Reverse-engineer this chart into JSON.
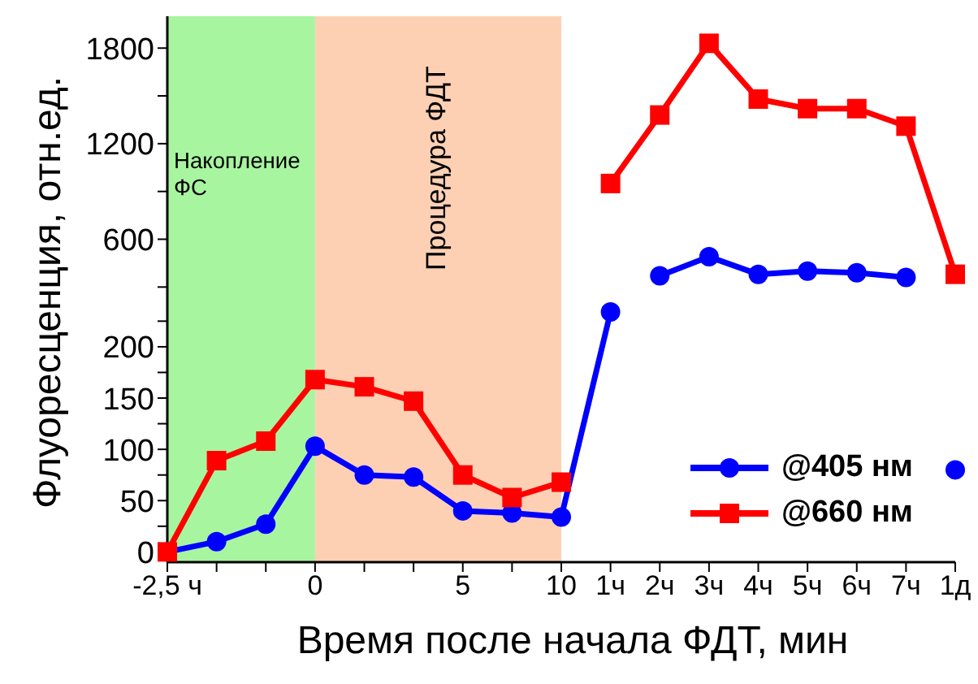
{
  "chart_data": [
    {
      "type": "line",
      "ylabel": "Флуоресценция, отн.ед.",
      "categories": [
        "-2,5 ч",
        null,
        null,
        "0",
        null,
        null,
        "5",
        null,
        "10",
        "1ч",
        "2ч",
        "3ч",
        "4ч",
        "5ч",
        "6ч",
        "7ч",
        "1д"
      ],
      "series": [
        {
          "color": "#0000ff",
          "marker": "circle",
          "values": [
            null,
            null,
            null,
            null,
            null,
            null,
            null,
            null,
            null,
            null,
            370,
            490,
            380,
            400,
            390,
            360,
            null
          ]
        },
        {
          "color": "#ff0000",
          "marker": "square",
          "values": [
            null,
            null,
            null,
            null,
            null,
            null,
            null,
            null,
            null,
            950,
            1380,
            1830,
            1480,
            1420,
            1420,
            1310,
            380
          ]
        }
      ],
      "ylim": [
        266,
        2000
      ],
      "yticks": [
        {
          "value": 300,
          "label": null
        },
        600,
        {
          "value": 900,
          "label": null
        },
        1200,
        {
          "value": 1500,
          "label": null
        },
        1800
      ],
      "bands": [
        {
          "axis": "x",
          "from": "-2,5 ч",
          "to": "0",
          "label": "Накопление ФС",
          "color": "#a8f5a0"
        },
        {
          "axis": "x",
          "from": "0",
          "to": "10",
          "label": "Процедура ФДТ",
          "color": "#fdd0b4"
        }
      ],
      "tick_labels": "y",
      "grid": false,
      "legend": false
    },
    {
      "type": "line",
      "xlabel": "Время после начала ФДТ, мин",
      "categories": [
        "-2,5 ч",
        null,
        null,
        "0",
        null,
        null,
        "5",
        null,
        "10",
        "1ч",
        "2ч",
        "3ч",
        "4ч",
        "5ч",
        "6ч",
        "7ч",
        "1д"
      ],
      "series": [
        {
          "name": "@405 нм",
          "color": "#0000ff",
          "marker": "circle",
          "values": [
            0,
            10,
            27,
            103,
            75,
            73,
            40,
            38,
            34,
            234,
            null,
            null,
            null,
            null,
            null,
            null,
            80
          ]
        },
        {
          "name": "@660 нм",
          "color": "#ff0000",
          "marker": "square",
          "values": [
            0,
            89,
            108,
            168,
            161,
            147,
            75,
            53,
            68,
            null,
            null,
            null,
            null,
            null,
            null,
            null,
            null
          ]
        }
      ],
      "ylim": [
        -10,
        253
      ],
      "yticks": [
        0,
        {
          "value": 25,
          "label": null
        },
        50,
        {
          "value": 75,
          "label": null
        },
        100,
        {
          "value": 125,
          "label": null
        },
        150,
        {
          "value": 175,
          "label": null
        },
        200,
        {
          "value": 225,
          "label": null
        }
      ],
      "bands": [
        {
          "axis": "x",
          "from": "-2,5 ч",
          "to": "0",
          "color": "#a8f5a0"
        },
        {
          "axis": "x",
          "from": "0",
          "to": "10",
          "color": "#fdd0b4"
        }
      ],
      "grid": false,
      "legend": "bottom right"
    }
  ]
}
